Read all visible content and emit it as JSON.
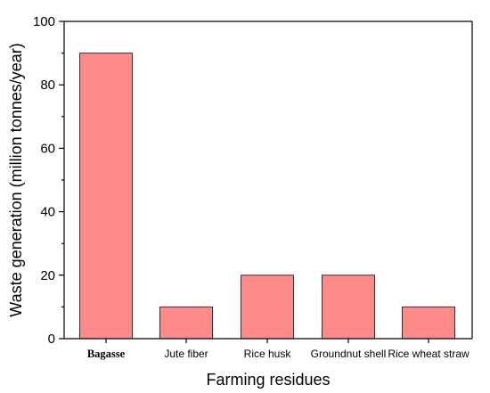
{
  "chart_data": {
    "type": "bar",
    "categories": [
      "Bagasse",
      "Jute fiber",
      "Rice husk",
      "Groundnut shell",
      "Rice wheat straw"
    ],
    "values": [
      90,
      10,
      20,
      20,
      10
    ],
    "xlabel": "Farming residues",
    "ylabel": "Waste generation (million tonnes/year)",
    "ylim": [
      0,
      100
    ],
    "yticks": [
      "0",
      "20",
      "40",
      "60",
      "80",
      "100"
    ],
    "bar_color": "#fe8a8a",
    "grid": false,
    "legend": "none"
  }
}
